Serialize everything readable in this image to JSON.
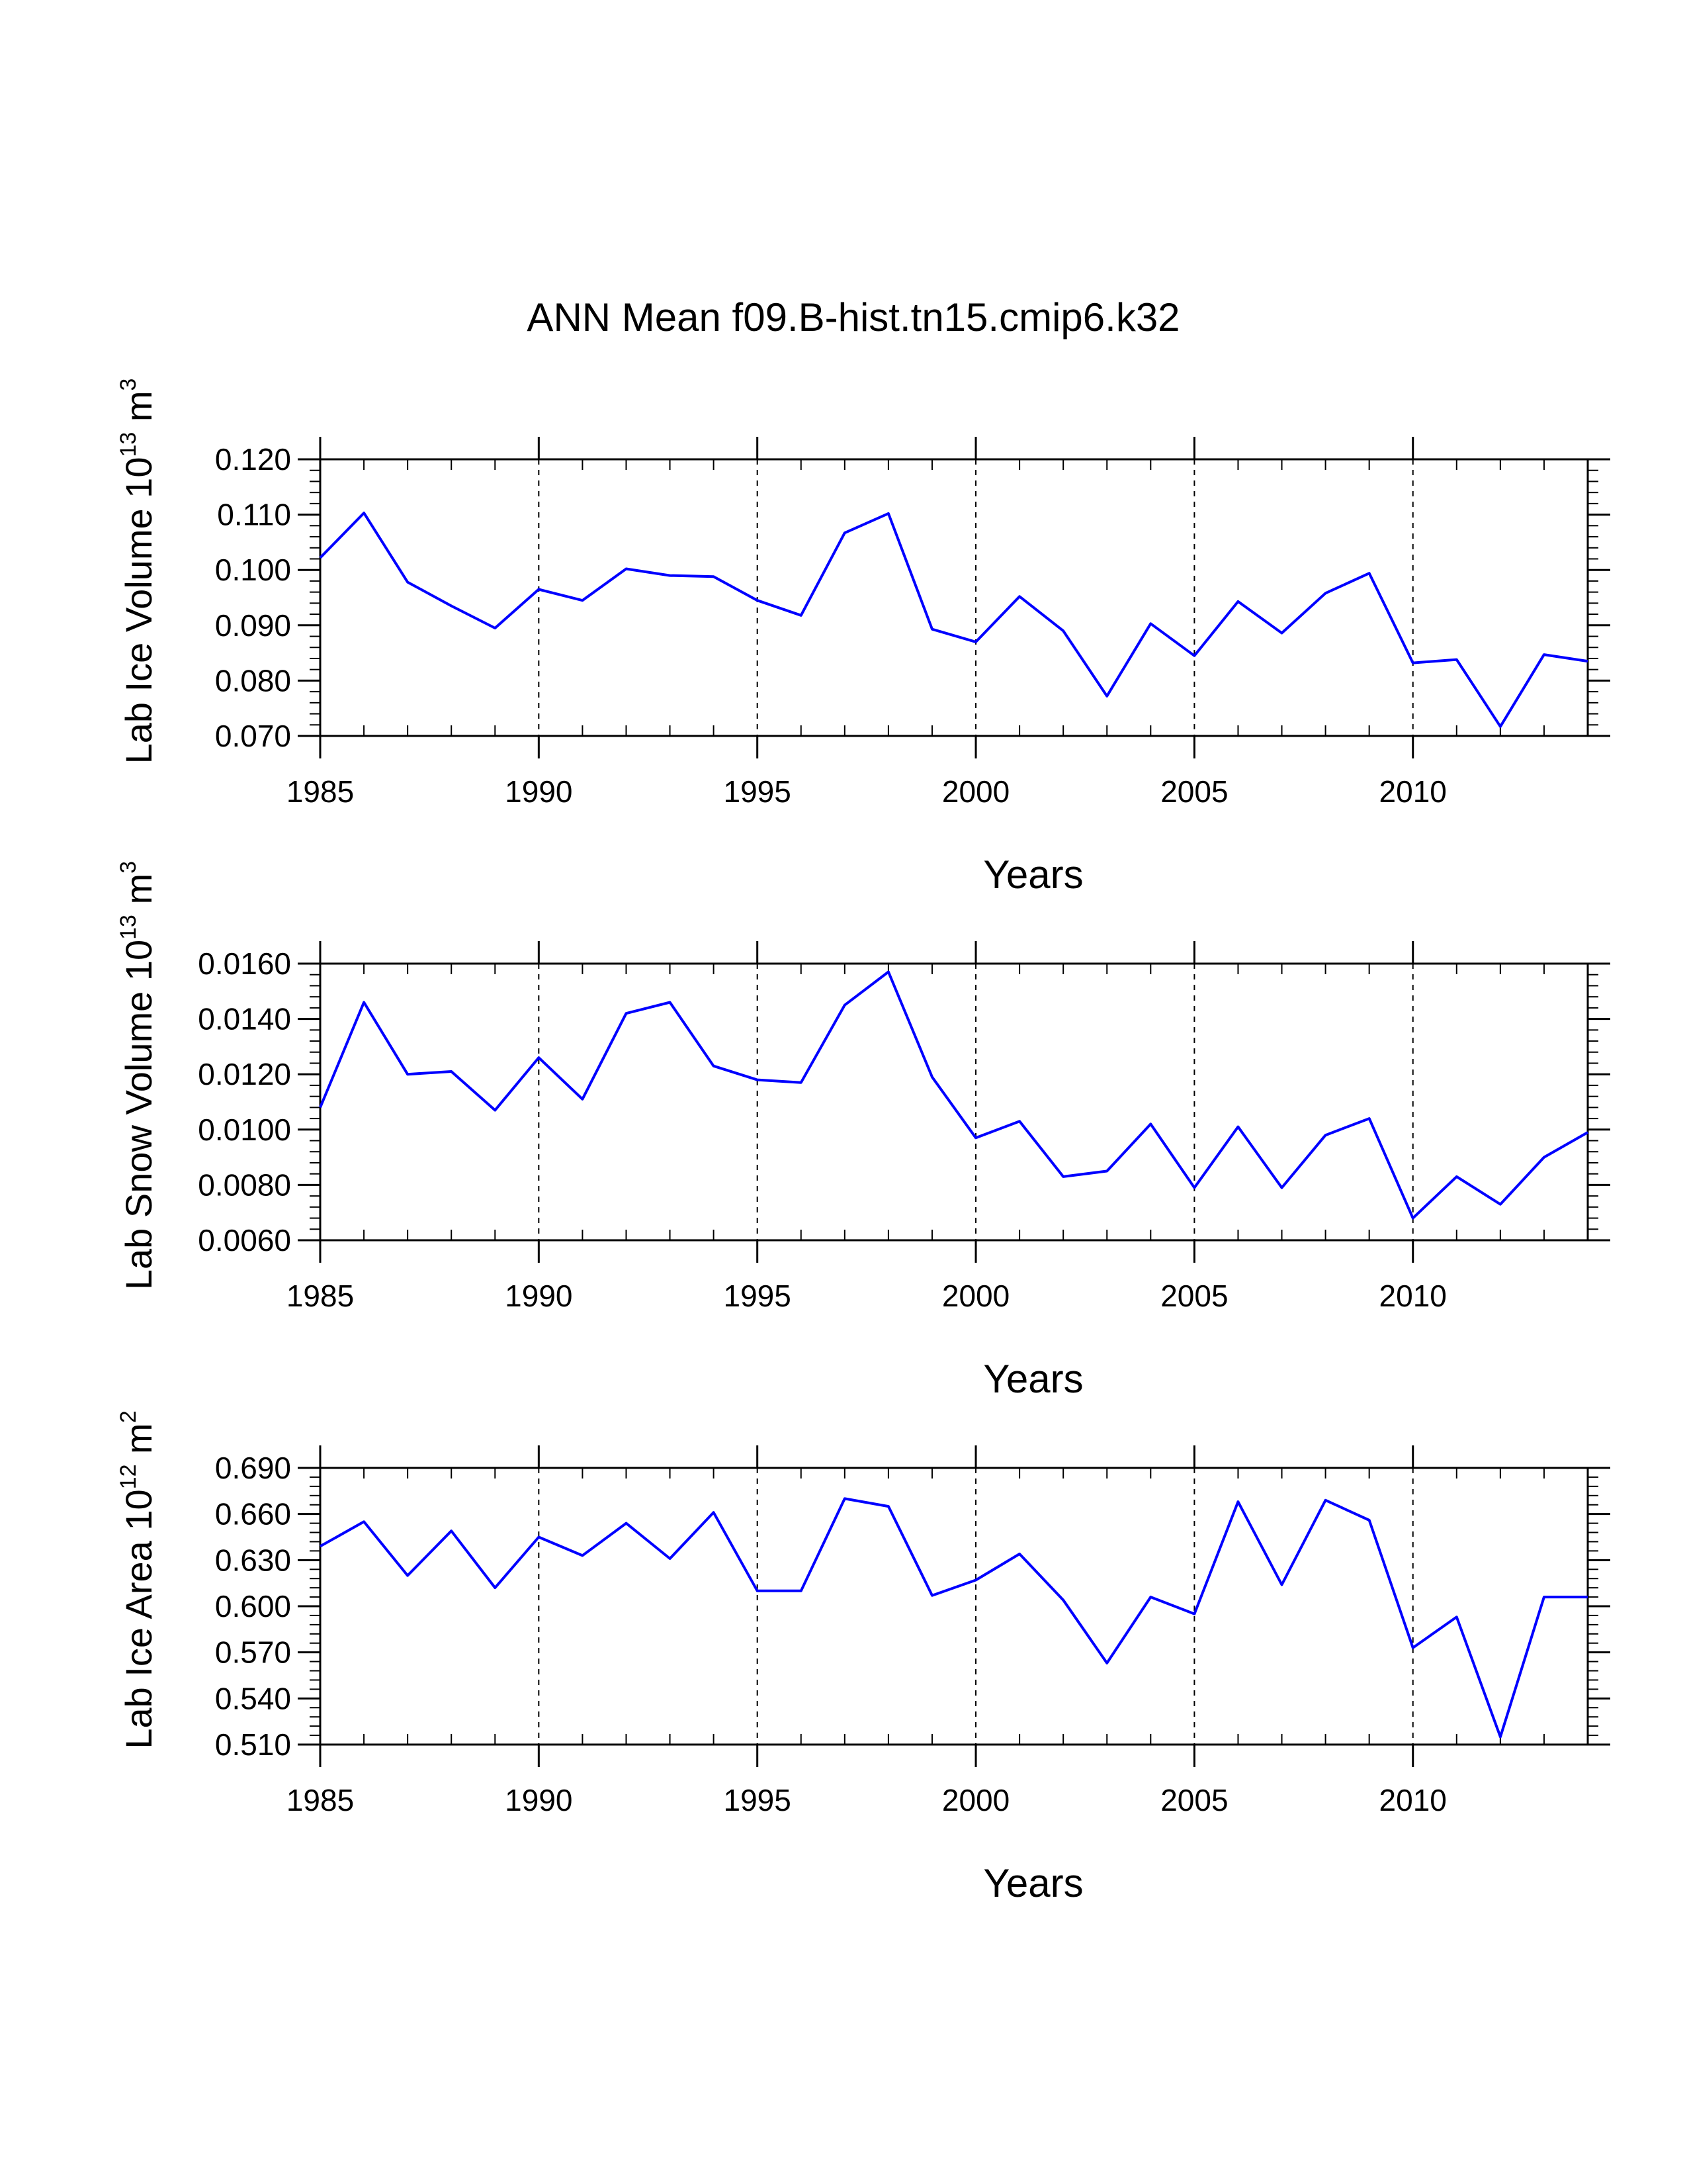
{
  "figure": {
    "title": "ANN Mean f09.B-hist.tn15.cmip6.k32"
  },
  "colors": {
    "line": "#0000ff",
    "axis": "#000000"
  },
  "chart_data": [
    {
      "type": "line",
      "xlabel": "Years",
      "ylabel": {
        "text": "Lab Ice Volume 10",
        "exp": "13",
        "unit": " m",
        "unit_exp": "3"
      },
      "xlim": [
        1985,
        2014
      ],
      "ylim": [
        0.07,
        0.12
      ],
      "xticks": [
        "1985",
        "1990",
        "1995",
        "2000",
        "2005",
        "2010"
      ],
      "yticks": [
        "0.070",
        "0.080",
        "0.090",
        "0.100",
        "0.110",
        "0.120"
      ],
      "grid": "dashed vertical at major x ticks",
      "x": [
        1985,
        1986,
        1987,
        1988,
        1989,
        1990,
        1991,
        1992,
        1993,
        1994,
        1995,
        1996,
        1997,
        1998,
        1999,
        2000,
        2001,
        2002,
        2003,
        2004,
        2005,
        2006,
        2007,
        2008,
        2009,
        2010,
        2011,
        2012,
        2013,
        2014
      ],
      "series": [
        {
          "values": [
            0.1022,
            0.1103,
            0.0978,
            0.0935,
            0.0895,
            0.0965,
            0.0945,
            0.1002,
            0.099,
            0.0988,
            0.0945,
            0.0918,
            0.1067,
            0.1102,
            0.0893,
            0.087,
            0.0952,
            0.089,
            0.0772,
            0.0903,
            0.0845,
            0.0943,
            0.0886,
            0.0958,
            0.0994,
            0.0832,
            0.0838,
            0.0717,
            0.0847,
            0.0835
          ]
        }
      ]
    },
    {
      "type": "line",
      "xlabel": "Years",
      "ylabel": {
        "text": "Lab Snow Volume 10",
        "exp": "13",
        "unit": " m",
        "unit_exp": "3"
      },
      "xlim": [
        1985,
        2014
      ],
      "ylim": [
        0.006,
        0.016
      ],
      "xticks": [
        "1985",
        "1990",
        "1995",
        "2000",
        "2005",
        "2010"
      ],
      "yticks": [
        "0.0060",
        "0.0080",
        "0.0100",
        "0.0120",
        "0.0140",
        "0.0160"
      ],
      "grid": "dashed vertical at major x ticks",
      "x": [
        1985,
        1986,
        1987,
        1988,
        1989,
        1990,
        1991,
        1992,
        1993,
        1994,
        1995,
        1996,
        1997,
        1998,
        1999,
        2000,
        2001,
        2002,
        2003,
        2004,
        2005,
        2006,
        2007,
        2008,
        2009,
        2010,
        2011,
        2012,
        2013,
        2014
      ],
      "series": [
        {
          "values": [
            0.0108,
            0.0146,
            0.012,
            0.0121,
            0.0107,
            0.0126,
            0.0111,
            0.0142,
            0.0146,
            0.0123,
            0.0118,
            0.0117,
            0.0145,
            0.0157,
            0.0119,
            0.0097,
            0.0103,
            0.0083,
            0.0085,
            0.0102,
            0.0079,
            0.0101,
            0.0079,
            0.0098,
            0.0104,
            0.0068,
            0.0083,
            0.0073,
            0.009,
            0.0099
          ]
        }
      ]
    },
    {
      "type": "line",
      "xlabel": "Years",
      "ylabel": {
        "text": "Lab Ice Area 10",
        "exp": "12",
        "unit": " m",
        "unit_exp": "2"
      },
      "xlim": [
        1985,
        2014
      ],
      "ylim": [
        0.51,
        0.69
      ],
      "xticks": [
        "1985",
        "1990",
        "1995",
        "2000",
        "2005",
        "2010"
      ],
      "yticks": [
        "0.510",
        "0.540",
        "0.570",
        "0.600",
        "0.630",
        "0.660",
        "0.690"
      ],
      "grid": "dashed vertical at major x ticks",
      "x": [
        1985,
        1986,
        1987,
        1988,
        1989,
        1990,
        1991,
        1992,
        1993,
        1994,
        1995,
        1996,
        1997,
        1998,
        1999,
        2000,
        2001,
        2002,
        2003,
        2004,
        2005,
        2006,
        2007,
        2008,
        2009,
        2010,
        2011,
        2012,
        2013,
        2014
      ],
      "series": [
        {
          "values": [
            0.639,
            0.655,
            0.62,
            0.649,
            0.612,
            0.645,
            0.633,
            0.654,
            0.631,
            0.661,
            0.61,
            0.61,
            0.67,
            0.665,
            0.607,
            0.617,
            0.634,
            0.604,
            0.563,
            0.606,
            0.595,
            0.668,
            0.614,
            0.669,
            0.656,
            0.573,
            0.593,
            0.515,
            0.606,
            0.606
          ]
        }
      ]
    }
  ]
}
